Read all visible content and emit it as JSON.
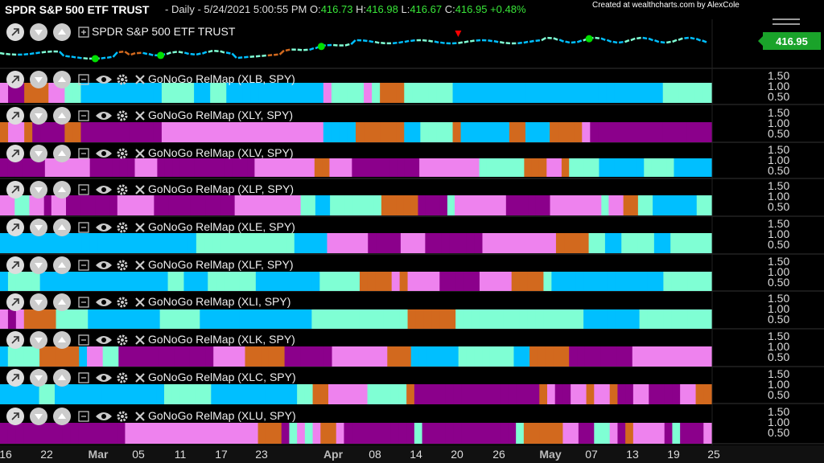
{
  "header": {
    "symbol": "SPDR S&P 500 ETF TRUST",
    "info_prefix": "- Daily - 5/24/2021 5:00:55 PM",
    "open_label": "O:",
    "open": "416.73",
    "high_label": "H:",
    "high": "416.98",
    "low_label": "L:",
    "low": "416.67",
    "close_label": "C:",
    "close": "416.95",
    "change": "+0.48%"
  },
  "credit": "Created at wealthcharts.com by AlexCole",
  "price_panel": {
    "title": "SPDR S&P 500 ETF TRUST",
    "last_price": "416.95"
  },
  "colors": {
    "bright_blue": "#00bfff",
    "aqua": "#7fffd4",
    "pink": "#ee82ee",
    "purple": "#8b008b",
    "orange": "#d2691e",
    "go_dot": "#00e000",
    "sell_marker": "#ff0000"
  },
  "icons": [
    "expand-icon",
    "chevron-down-icon",
    "chevron-up-icon",
    "collapse-icon",
    "eye-icon",
    "gear-icon",
    "close-icon",
    "menu-icon"
  ],
  "yaxis_labels": [
    "1.50",
    "1.00",
    "0.50"
  ],
  "chart_data": {
    "type": "heatmap",
    "title": "SPDR S&P 500 ETF TRUST",
    "x_ticks": [
      "16",
      "22",
      "Mar",
      "05",
      "11",
      "17",
      "23",
      "Apr",
      "08",
      "14",
      "20",
      "26",
      "May",
      "07",
      "13",
      "19",
      "25"
    ],
    "month_ticks": [
      "Mar",
      "Apr",
      "May"
    ],
    "price_series": {
      "close_last": 416.95,
      "states": "mostly aqua/blue dashes with brief orange weakness early March",
      "go_dots_at_index": [
        12,
        20,
        40,
        73
      ],
      "sell_marker_at_index": 57
    },
    "state_key": {
      "B": "bright_blue",
      "A": "aqua",
      "P": "pink",
      "V": "purple",
      "O": "orange"
    },
    "panels": [
      {
        "name": "GoNoGo RelMap (XLB, SPY)",
        "states": "PVVOOOPPAABBBBBBBBBBAAAABBAABBBBBBBBBBBBPAAAAPAOOOAAAAAABBBBBBBBBBBBBBBBBBBBBBBBBBAAAAAA"
      },
      {
        "name": "GoNoGo RelMap (XLY, SPY)",
        "states": "OPPOVVVVOOVVVVVVVVVVPPPPPPPPPPPPPPPPPPPPBBBBOOOOOOBBAAAAOBBBBBBOOBBBOOOOPVVVVVVVVVVVVVVV"
      },
      {
        "name": "GoNoGo RelMap (XLV, SPY)",
        "states": "VVVVVVPPPPPPVVVVVVPPPVVVVVVVVVVVVVPPPPPPPPOOPPPVVVVVVVVVPPPPPPPPAAAAAAOOOPPOAAAABBBBBBAAAABBBBB"
      },
      {
        "name": "GoNoGo RelMap (XLP, SPY)",
        "states": "PPAAPPVPPVVVVVVVPPPPPVVVVVVVVVVVPPPPPPPPPAABBAAAAAAAOOOOOVVVVAPPPPPPPVVVVVVPPPPPPPAPPOOAABBBBBBAA"
      },
      {
        "name": "GoNoGo RelMap (XLE, SPY)",
        "states": "BBBBBBBBBBBBBBBBBBBBBBBBAAAAAAAAAAAABBBBPPPPPVVVVPPPVVVVVVVPPPPPPPPPOOOOAABBAAAABBAAAAA"
      },
      {
        "name": "GoNoGo RelMap (XLF, SPY)",
        "states": "BAAAABBBBBBBBBBBBBBBBAABBBAAAAAABBBBBBBBAAAAAOOOOPOPPPPVVVVVPPPPOOOOABBBBBBBBBBBBBBAAAAAA"
      },
      {
        "name": "GoNoGo RelMap (XLI, SPY)",
        "states": "PVPOOOOAAAABBBBBBBBBAAAAABBBBBBBBBBBBBBAAAAAAAAAAAAOOOOOOAAAAAAAAAAAAAAAABBBBBBBAAAAAAAAA"
      },
      {
        "name": "GoNoGo RelMap (XLK, SPY)",
        "states": "BAAAAOOOOOBPPAAVVVVVVVVVVVVPPPPOOOOOVVVVVVPPPPPPPOOOBBBBBBAAAAAAABBOOOOOVVVVVVVVPPPPPPPPPP"
      },
      {
        "name": "GoNoGo RelMap (XLC, SPY)",
        "states": "BBBBBAABBBBBBBBBBBBBBAAAAAABBBBBBBBBBBAAOOPPPPPAAAAAOVVVVVVVVVVVVVVVVOPVVPPOPPOVVPPVVVVPPOO"
      },
      {
        "name": "GoNoGo RelMap (XLU, SPY)",
        "states": "VVVVVVVVVVVVVVVVPPPPPPPPPPPPPPPPPOOOVAPAPOOPVVVVVVVVVAVVVVVVVVVVVVAOOOOOPPVVAAPVOPPPPVAVVVP"
      }
    ]
  }
}
